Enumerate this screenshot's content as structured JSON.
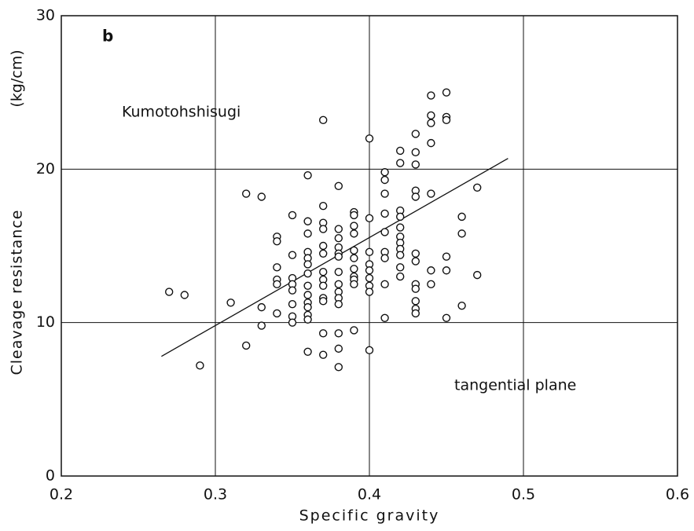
{
  "chart_data": {
    "type": "scatter",
    "panel_label": "b",
    "annotations": [
      "Kumotohshisugi",
      "tangential plane"
    ],
    "x_label": "Specific gravity",
    "y_label": "Cleavage resistance",
    "y_unit": "(kg/cm)",
    "xlim": [
      0.2,
      0.6
    ],
    "ylim": [
      0,
      30
    ],
    "xticks": [
      0.2,
      0.3,
      0.4,
      0.5,
      0.6
    ],
    "yticks": [
      0,
      10,
      20,
      30
    ],
    "grid": true,
    "color": "#111111",
    "x": [
      0.27,
      0.28,
      0.29,
      0.31,
      0.32,
      0.32,
      0.33,
      0.33,
      0.33,
      0.34,
      0.34,
      0.34,
      0.34,
      0.34,
      0.34,
      0.35,
      0.35,
      0.35,
      0.35,
      0.35,
      0.35,
      0.35,
      0.35,
      0.36,
      0.36,
      0.36,
      0.36,
      0.36,
      0.36,
      0.36,
      0.36,
      0.36,
      0.36,
      0.36,
      0.36,
      0.36,
      0.36,
      0.37,
      0.37,
      0.37,
      0.37,
      0.37,
      0.37,
      0.37,
      0.37,
      0.37,
      0.37,
      0.37,
      0.37,
      0.37,
      0.38,
      0.38,
      0.38,
      0.38,
      0.38,
      0.38,
      0.38,
      0.38,
      0.38,
      0.38,
      0.38,
      0.38,
      0.38,
      0.38,
      0.39,
      0.39,
      0.39,
      0.39,
      0.39,
      0.39,
      0.39,
      0.39,
      0.39,
      0.39,
      0.39,
      0.4,
      0.4,
      0.4,
      0.4,
      0.4,
      0.4,
      0.4,
      0.4,
      0.4,
      0.41,
      0.41,
      0.41,
      0.41,
      0.41,
      0.41,
      0.41,
      0.41,
      0.41,
      0.42,
      0.42,
      0.42,
      0.42,
      0.42,
      0.42,
      0.42,
      0.42,
      0.42,
      0.42,
      0.42,
      0.43,
      0.43,
      0.43,
      0.43,
      0.43,
      0.43,
      0.43,
      0.43,
      0.43,
      0.43,
      0.43,
      0.43,
      0.44,
      0.44,
      0.44,
      0.44,
      0.44,
      0.44,
      0.44,
      0.45,
      0.45,
      0.45,
      0.45,
      0.45,
      0.45,
      0.46,
      0.46,
      0.46,
      0.47,
      0.47
    ],
    "y": [
      12.0,
      11.8,
      7.2,
      11.3,
      18.4,
      8.5,
      18.2,
      11.0,
      9.8,
      15.6,
      15.3,
      13.6,
      12.8,
      12.5,
      10.6,
      17.0,
      14.4,
      12.9,
      12.5,
      12.1,
      11.2,
      10.4,
      10.0,
      19.6,
      16.6,
      15.8,
      14.6,
      14.2,
      13.8,
      13.2,
      12.4,
      11.8,
      11.3,
      11.0,
      10.5,
      10.2,
      8.1,
      23.2,
      17.6,
      16.5,
      16.1,
      15.0,
      14.5,
      13.3,
      12.8,
      12.4,
      11.6,
      11.4,
      9.3,
      7.9,
      18.9,
      16.1,
      15.5,
      14.9,
      14.5,
      14.3,
      13.3,
      12.5,
      12.0,
      11.6,
      11.2,
      9.3,
      8.3,
      7.1,
      17.2,
      17.0,
      16.3,
      15.8,
      14.7,
      14.2,
      13.5,
      13.0,
      12.8,
      12.5,
      9.5,
      22.0,
      16.8,
      14.6,
      13.8,
      13.4,
      12.9,
      12.4,
      12.0,
      8.2,
      19.8,
      19.3,
      18.4,
      17.1,
      15.9,
      14.6,
      14.2,
      12.5,
      10.3,
      21.2,
      20.4,
      17.3,
      16.9,
      16.2,
      15.6,
      15.2,
      14.8,
      14.4,
      13.6,
      13.0,
      22.3,
      21.1,
      20.3,
      18.6,
      18.2,
      14.5,
      14.0,
      12.5,
      12.2,
      11.4,
      10.9,
      10.6,
      24.8,
      23.5,
      23.0,
      21.7,
      18.4,
      13.4,
      12.5,
      25.0,
      23.4,
      23.2,
      14.3,
      13.4,
      10.3,
      16.9,
      15.8,
      11.1,
      18.8,
      13.1
    ],
    "trend_line": {
      "x": [
        0.265,
        0.49
      ],
      "y": [
        7.8,
        20.7
      ]
    }
  }
}
